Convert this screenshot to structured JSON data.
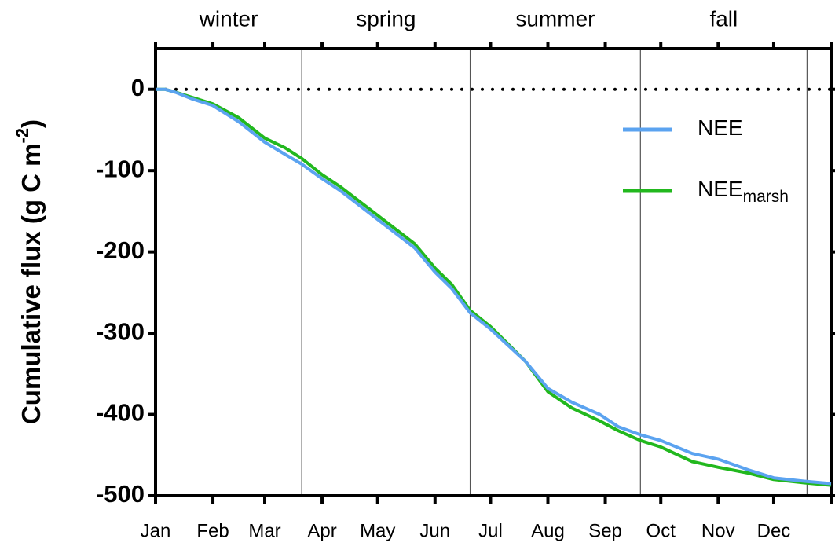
{
  "chart_data": {
    "type": "line",
    "seasons": [
      "winter",
      "spring",
      "summer",
      "fall"
    ],
    "season_boundaries": [
      79,
      170,
      262,
      352
    ],
    "y_label": "Cumulative flux (g C m",
    "y_label_sup": "-2",
    "y_label_end": ")",
    "xlim": [
      0,
      365
    ],
    "xticks": [
      {
        "value": 0,
        "label": "Jan"
      },
      {
        "value": 31,
        "label": "Feb"
      },
      {
        "value": 59,
        "label": "Mar"
      },
      {
        "value": 90,
        "label": "Apr"
      },
      {
        "value": 120,
        "label": "May"
      },
      {
        "value": 151,
        "label": "Jun"
      },
      {
        "value": 181,
        "label": "Jul"
      },
      {
        "value": 212,
        "label": "Aug"
      },
      {
        "value": 243,
        "label": "Sep"
      },
      {
        "value": 273,
        "label": "Oct"
      },
      {
        "value": 304,
        "label": "Nov"
      },
      {
        "value": 334,
        "label": "Dec"
      },
      {
        "value": 365,
        "label": ""
      }
    ],
    "ylim": [
      -500,
      50
    ],
    "yticks": [
      -500,
      -400,
      -300,
      -200,
      -100,
      0
    ],
    "reference_line": 0,
    "x": [
      0,
      5,
      10,
      20,
      31,
      45,
      59,
      70,
      79,
      90,
      100,
      120,
      140,
      151,
      160,
      170,
      181,
      200,
      212,
      225,
      240,
      250,
      262,
      273,
      290,
      304,
      320,
      334,
      350,
      365
    ],
    "series": [
      {
        "name": "NEE",
        "color": "#5ba3f0",
        "values": [
          0,
          0,
          -3,
          -12,
          -20,
          -40,
          -65,
          -80,
          -92,
          -110,
          -125,
          -160,
          -195,
          -225,
          -245,
          -275,
          -295,
          -335,
          -368,
          -385,
          -400,
          -415,
          -425,
          -432,
          -448,
          -455,
          -468,
          -478,
          -482,
          -485
        ]
      },
      {
        "name": "NEE",
        "subscript": "marsh",
        "color": "#22b81e",
        "values": [
          0,
          0,
          -3,
          -10,
          -18,
          -35,
          -60,
          -72,
          -85,
          -105,
          -120,
          -155,
          -190,
          -220,
          -240,
          -272,
          -292,
          -335,
          -372,
          -392,
          -408,
          -420,
          -432,
          -440,
          -458,
          -465,
          -472,
          -480,
          -484,
          -487
        ]
      }
    ]
  }
}
